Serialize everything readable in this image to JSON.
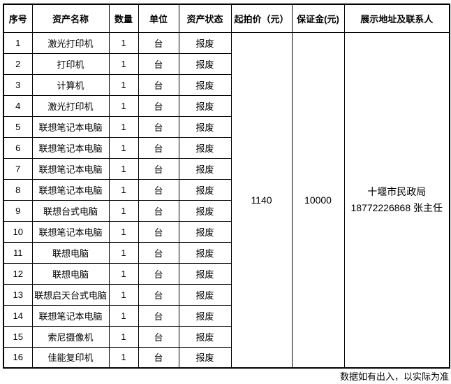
{
  "table": {
    "headers": [
      "序号",
      "资产名称",
      "数量",
      "单位",
      "资产状态",
      "起拍价（元）",
      "保证金(元)",
      "展示地址及联系人"
    ],
    "rows": [
      {
        "no": "1",
        "name": "激光打印机",
        "qty": "1",
        "unit": "台",
        "status": "报废"
      },
      {
        "no": "2",
        "name": "打印机",
        "qty": "1",
        "unit": "台",
        "status": "报废"
      },
      {
        "no": "3",
        "name": "计算机",
        "qty": "1",
        "unit": "台",
        "status": "报废"
      },
      {
        "no": "4",
        "name": "激光打印机",
        "qty": "1",
        "unit": "台",
        "status": "报废"
      },
      {
        "no": "5",
        "name": "联想笔记本电脑",
        "qty": "1",
        "unit": "台",
        "status": "报废"
      },
      {
        "no": "6",
        "name": "联想笔记本电脑",
        "qty": "1",
        "unit": "台",
        "status": "报废"
      },
      {
        "no": "7",
        "name": "联想笔记本电脑",
        "qty": "1",
        "unit": "台",
        "status": "报废"
      },
      {
        "no": "8",
        "name": "联想笔记本电脑",
        "qty": "1",
        "unit": "台",
        "status": "报废"
      },
      {
        "no": "9",
        "name": "联想台式电脑",
        "qty": "1",
        "unit": "台",
        "status": "报废"
      },
      {
        "no": "10",
        "name": "联想笔记本电脑",
        "qty": "1",
        "unit": "台",
        "status": "报废"
      },
      {
        "no": "11",
        "name": "联想电脑",
        "qty": "1",
        "unit": "台",
        "status": "报废"
      },
      {
        "no": "12",
        "name": "联想电脑",
        "qty": "1",
        "unit": "台",
        "status": "报废"
      },
      {
        "no": "13",
        "name": "联想启天台式电脑",
        "qty": "1",
        "unit": "台",
        "status": "报废"
      },
      {
        "no": "14",
        "name": "联想笔记本电脑",
        "qty": "1",
        "unit": "台",
        "status": "报废"
      },
      {
        "no": "15",
        "name": "索尼摄像机",
        "qty": "1",
        "unit": "台",
        "status": "报废"
      },
      {
        "no": "16",
        "name": "佳能复印机",
        "qty": "1",
        "unit": "台",
        "status": "报废"
      }
    ],
    "merged": {
      "start_price": "1140",
      "deposit": "10000",
      "contact_lines": [
        "十堰市民政局",
        "18772226868 张主任"
      ]
    }
  },
  "footnote": "数据如有出入，以实际为准",
  "colors": {
    "border": "#000000",
    "text": "#000000",
    "background": "#ffffff"
  }
}
